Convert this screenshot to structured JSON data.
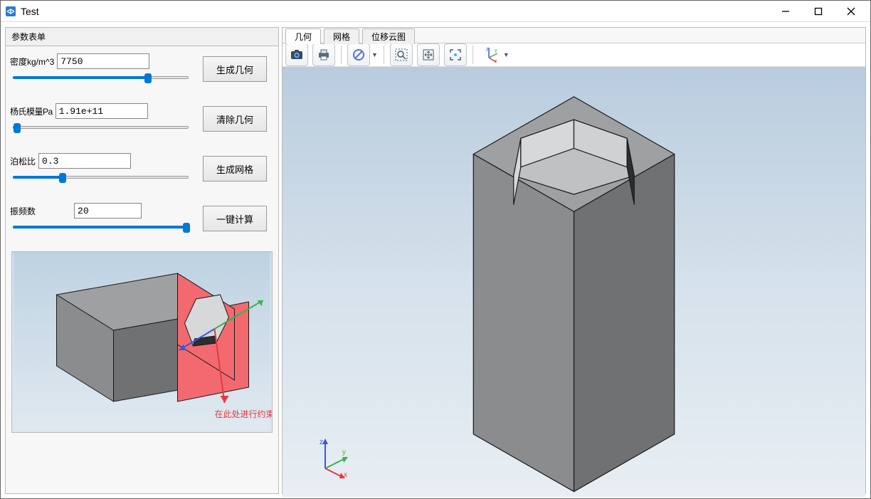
{
  "window": {
    "title": "Test"
  },
  "sidebar": {
    "header": "参数表单",
    "params": {
      "density": {
        "label": "密度kg/m^3",
        "value": "7750",
        "slider_percent": 77
      },
      "young": {
        "label": "杨氏模量Pa",
        "value": "1.91e+11",
        "slider_percent": 2
      },
      "poisson": {
        "label": "泊松比",
        "value": "0.3",
        "slider_percent": 28
      },
      "freq": {
        "label": "振频数",
        "value": "20",
        "slider_percent": 99
      }
    },
    "buttons": {
      "gen_geom": "生成几何",
      "clear_geom": "清除几何",
      "gen_mesh": "生成网格",
      "compute": "一键计算"
    },
    "preview_caption": "在此处进行约束"
  },
  "tabs": {
    "geom": "几何",
    "mesh": "网格",
    "disp": "位移云图"
  },
  "colors": {
    "accent": "#0078d7",
    "solid_front": "#8a8c8e",
    "solid_side": "#6f7173",
    "solid_top": "#9ea0a2",
    "hole_light": "#d6d8da",
    "hole_mid": "#bfc1c3",
    "hole_shadow": "#2c2d2e",
    "edge": "#1a1a1a",
    "preview_highlight": "#f26a6f",
    "axis_x": "#e23b3b",
    "axis_y": "#35b44a",
    "axis_z": "#3b55e2",
    "grad_top": "#b9ccde",
    "grad_bot": "#e8eef3"
  }
}
